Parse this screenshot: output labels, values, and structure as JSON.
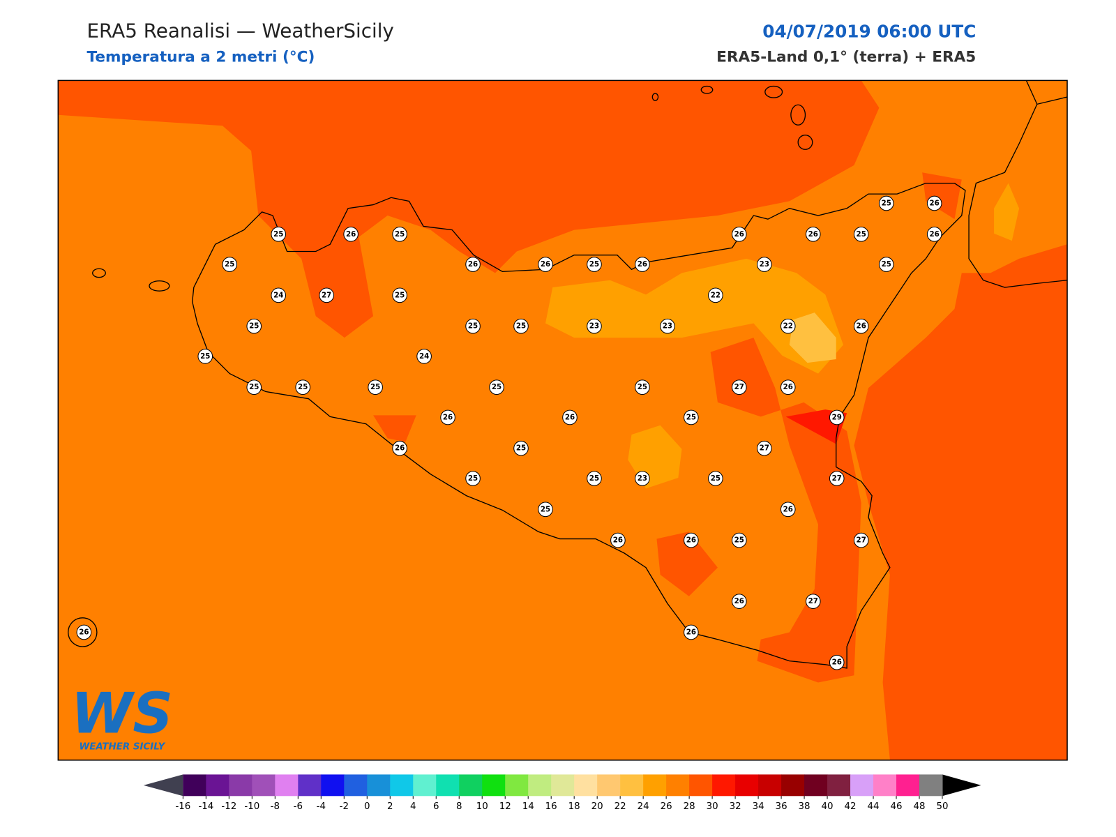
{
  "header": {
    "title": "ERA5 Reanalisi — WeatherSicily",
    "subtitle": "Temperatura a 2 metri (°C)",
    "date": "04/07/2019 06:00 UTC",
    "source": "ERA5-Land 0,1° (terra) + ERA5"
  },
  "stations": {
    "values": [
      25,
      26,
      25,
      25,
      24,
      27,
      25,
      25,
      25,
      25,
      25,
      26,
      26,
      25,
      26,
      26,
      26,
      25,
      25,
      26,
      26,
      23,
      25,
      22,
      25,
      25,
      23,
      23,
      22,
      26,
      24,
      25,
      25,
      25,
      27,
      26,
      26,
      26,
      25,
      29,
      26,
      25,
      27,
      25,
      25,
      23,
      25,
      27,
      25,
      26,
      26,
      26,
      25,
      27,
      26,
      27,
      26,
      26,
      26
    ]
  },
  "colorbar": {
    "ticks": [
      -16,
      -14,
      -12,
      -10,
      -8,
      -6,
      -4,
      -2,
      0,
      2,
      4,
      6,
      8,
      10,
      12,
      14,
      16,
      18,
      20,
      22,
      24,
      26,
      28,
      30,
      32,
      34,
      36,
      38,
      40,
      42,
      44,
      46,
      48,
      50
    ],
    "colors": [
      "#40005a",
      "#6a1494",
      "#8a3aa8",
      "#a050b8",
      "#e080f0",
      "#6030c8",
      "#1010f0",
      "#2060e0",
      "#1890d8",
      "#10c8e8",
      "#60f0d0",
      "#10e0b0",
      "#10d060",
      "#10e010",
      "#80e840",
      "#c0ec80",
      "#e0e898",
      "#ffe0a0",
      "#ffc870",
      "#ffc040",
      "#ffa000",
      "#ff8000",
      "#ff5500",
      "#ff1800",
      "#e80000",
      "#c80000",
      "#980000",
      "#700020",
      "#802040",
      "#d8a0f8",
      "#ff80c8",
      "#ff2090",
      "#808080"
    ],
    "under_color": "#404050",
    "over_color": "#000000",
    "last_color": "#303030"
  },
  "logo": {
    "text": "WS",
    "caption": "WEATHER SICILY"
  }
}
